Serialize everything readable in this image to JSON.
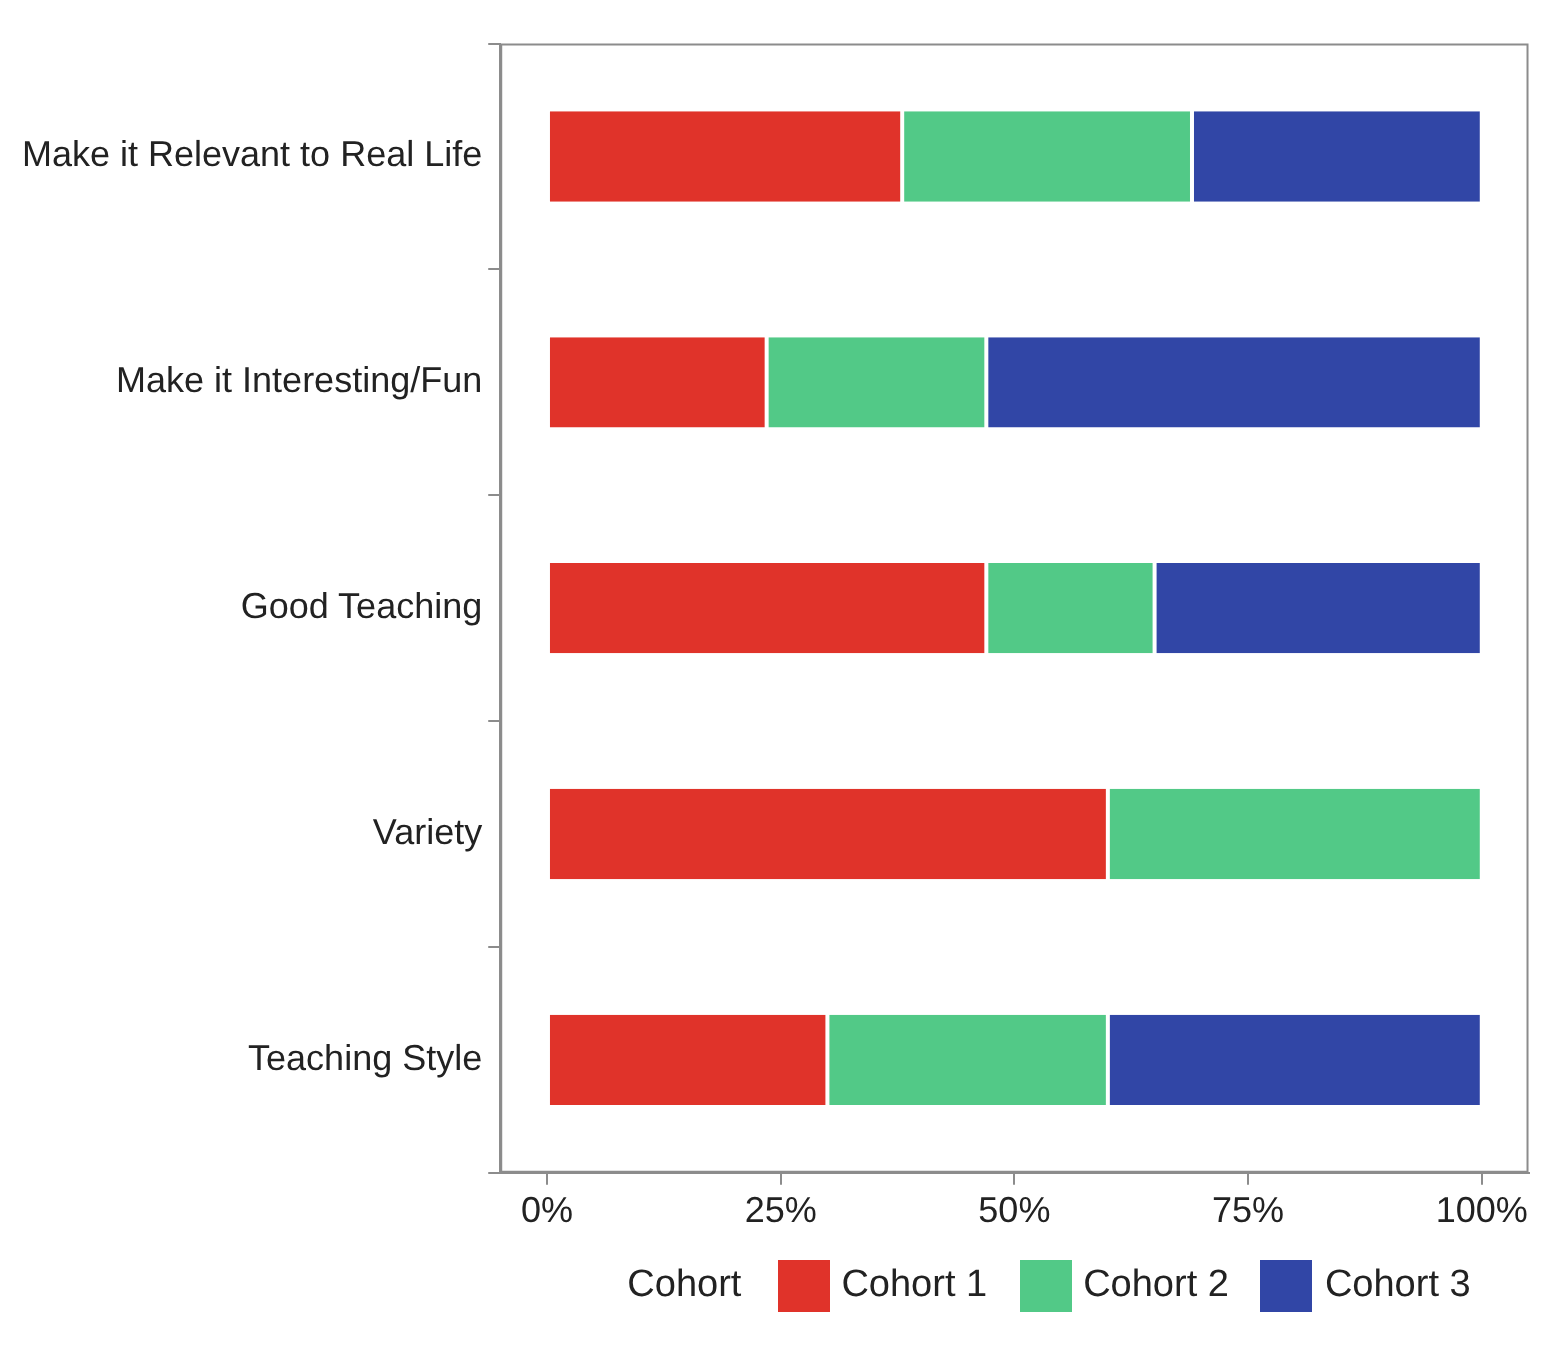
{
  "chart_data": {
    "type": "bar",
    "orientation": "horizontal",
    "stacked": true,
    "categories": [
      "Make it Relevant to Real Life",
      "Make it Interesting/Fun",
      "Good Teaching",
      "Variety",
      "Teaching Style"
    ],
    "series": [
      {
        "name": "Cohort 1",
        "color": "#e0332a",
        "values": [
          38,
          23.5,
          47,
          60,
          30
        ]
      },
      {
        "name": "Cohort 2",
        "color": "#52c987",
        "values": [
          31,
          23.5,
          18,
          40,
          30
        ]
      },
      {
        "name": "Cohort 3",
        "color": "#3146a6",
        "values": [
          31,
          53,
          35,
          null,
          40
        ]
      }
    ],
    "xlim": [
      -5,
      105
    ],
    "xticks": [
      {
        "value": 0,
        "label": "0%"
      },
      {
        "value": 25,
        "label": "25%"
      },
      {
        "value": 50,
        "label": "50%"
      },
      {
        "value": 75,
        "label": "75%"
      },
      {
        "value": 100,
        "label": "100%"
      }
    ],
    "legend": "bottom",
    "legend_title": "Cohort",
    "grid": false
  }
}
